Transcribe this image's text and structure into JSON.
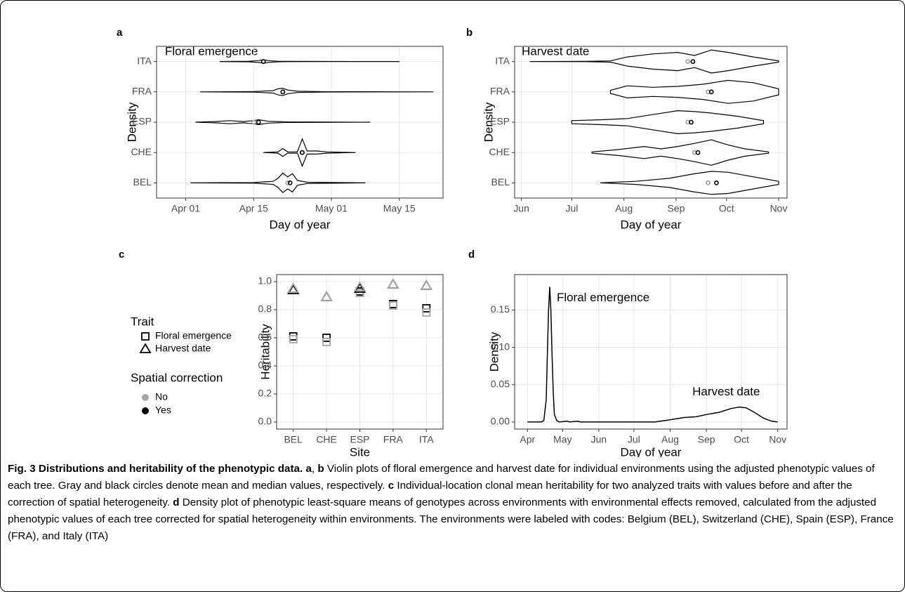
{
  "chart_data": [
    {
      "type": "violin",
      "label": "a",
      "title": "Floral emergence",
      "xlabel": "Day of year",
      "ylabel": "Density",
      "categories": [
        "BEL",
        "CHE",
        "ESP",
        "FRA",
        "ITA"
      ],
      "xlim": [
        85,
        144
      ],
      "xticks": [
        {
          "value": 91,
          "label": "Apr 01"
        },
        {
          "value": 105,
          "label": "Apr 15"
        },
        {
          "value": 121,
          "label": "May 01"
        },
        {
          "value": 135,
          "label": "May 15"
        }
      ],
      "grid": true,
      "mean_color": "#9e9e9e",
      "median_color": "#000000",
      "violins": [
        {
          "mean": 112,
          "median": 112.5,
          "density_x": [
            92,
            105,
            109,
            110,
            111,
            112,
            113,
            114,
            116,
            128
          ],
          "density_w": [
            0,
            0.01,
            0.05,
            0.15,
            0.32,
            0.2,
            0.3,
            0.08,
            0.02,
            0
          ]
        },
        {
          "mean": 115,
          "median": 115,
          "density_x": [
            107,
            110,
            111,
            112,
            114,
            115,
            116,
            118,
            120,
            126
          ],
          "density_w": [
            0,
            0.02,
            0.13,
            0.02,
            0.02,
            0.45,
            0.05,
            0.05,
            0.02,
            0
          ]
        },
        {
          "mean": 105,
          "median": 106,
          "density_x": [
            93,
            97,
            100,
            103,
            104,
            105,
            106,
            108,
            112,
            129
          ],
          "density_w": [
            0,
            0.02,
            0.05,
            0.02,
            0.04,
            0.05,
            0.08,
            0.03,
            0.01,
            0
          ]
        },
        {
          "mean": 111,
          "median": 111,
          "density_x": [
            94,
            105,
            109,
            110,
            111,
            112,
            114,
            120,
            142
          ],
          "density_w": [
            0,
            0.01,
            0.04,
            0.1,
            0.12,
            0.06,
            0.02,
            0.005,
            0
          ]
        },
        {
          "mean": 107,
          "median": 107,
          "density_x": [
            98,
            104,
            106,
            107,
            108,
            110,
            112,
            120,
            135
          ],
          "density_w": [
            0,
            0.01,
            0.03,
            0.06,
            0.03,
            0.01,
            0.005,
            0.003,
            0
          ]
        }
      ]
    },
    {
      "type": "violin",
      "label": "b",
      "title": "Harvest date",
      "xlabel": "Day of year",
      "ylabel": "Density",
      "categories": [
        "BEL",
        "CHE",
        "ESP",
        "FRA",
        "ITA"
      ],
      "xlim": [
        148,
        310
      ],
      "xticks": [
        {
          "value": 152,
          "label": "Jun"
        },
        {
          "value": 182,
          "label": "Jul"
        },
        {
          "value": 213,
          "label": "Aug"
        },
        {
          "value": 244,
          "label": "Sep"
        },
        {
          "value": 274,
          "label": "Oct"
        },
        {
          "value": 305,
          "label": "Nov"
        }
      ],
      "grid": true,
      "mean_color": "#9e9e9e",
      "median_color": "#000000",
      "violins": [
        {
          "mean": 263,
          "median": 268,
          "density_x": [
            199,
            220,
            240,
            255,
            265,
            275,
            290,
            305
          ],
          "density_w": [
            0,
            0.05,
            0.15,
            0.3,
            0.38,
            0.35,
            0.2,
            0.05
          ]
        },
        {
          "mean": 255,
          "median": 257,
          "density_x": [
            194,
            210,
            225,
            235,
            245,
            255,
            265,
            275,
            285,
            299
          ],
          "density_w": [
            0.02,
            0.1,
            0.2,
            0.12,
            0.2,
            0.3,
            0.42,
            0.25,
            0.12,
            0.02
          ]
        },
        {
          "mean": 251,
          "median": 253,
          "density_x": [
            182,
            200,
            215,
            230,
            245,
            255,
            265,
            280,
            296
          ],
          "density_w": [
            0.05,
            0.08,
            0.12,
            0.25,
            0.38,
            0.35,
            0.3,
            0.2,
            0.05
          ]
        },
        {
          "mean": 263,
          "median": 265,
          "density_x": [
            205,
            215,
            230,
            245,
            260,
            275,
            290,
            305
          ],
          "density_w": [
            0.05,
            0.2,
            0.15,
            0.18,
            0.25,
            0.38,
            0.3,
            0.1
          ]
        },
        {
          "mean": 251,
          "median": 254,
          "density_x": [
            157,
            190,
            205,
            215,
            230,
            245,
            255,
            265,
            275,
            290,
            305
          ],
          "density_w": [
            0,
            0.005,
            0.02,
            0.15,
            0.25,
            0.3,
            0.2,
            0.38,
            0.3,
            0.15,
            0.02
          ]
        }
      ]
    },
    {
      "type": "scatter",
      "label": "c",
      "xlabel": "Site",
      "ylabel": "Heritability",
      "categories": [
        "BEL",
        "CHE",
        "ESP",
        "FRA",
        "ITA"
      ],
      "ylim": [
        -0.05,
        1.05
      ],
      "yticks": [
        {
          "value": 0,
          "label": "0.0"
        },
        {
          "value": 0.2,
          "label": "0.2"
        },
        {
          "value": 0.4,
          "label": "0.4"
        },
        {
          "value": 0.6,
          "label": "0.6"
        },
        {
          "value": 0.8,
          "label": "0.8"
        },
        {
          "value": 1,
          "label": "1.0"
        }
      ],
      "grid": true,
      "legend": {
        "position": "left",
        "shape_title": "Trait",
        "shape_names": [
          "Floral emergence",
          "Harvest date"
        ],
        "shapes": [
          "square",
          "triangle"
        ],
        "color_title": "Spatial correction",
        "color_names": [
          "No",
          "Yes"
        ],
        "colors": [
          "#a6a6a6",
          "#000000"
        ]
      },
      "series": [
        {
          "shape": "square",
          "color": "#000000",
          "values": [
            0.61,
            0.6,
            0.93,
            0.84,
            0.81
          ]
        },
        {
          "shape": "square",
          "color": "#a6a6a6",
          "values": [
            0.59,
            0.57,
            0.92,
            0.83,
            0.78
          ]
        },
        {
          "shape": "triangle",
          "color": "#000000",
          "values": [
            0.94,
            0.89,
            0.95,
            0.98,
            0.97
          ]
        },
        {
          "shape": "triangle",
          "color": "#a6a6a6",
          "values": [
            0.95,
            0.89,
            0.96,
            0.98,
            0.97
          ]
        }
      ]
    },
    {
      "type": "line",
      "label": "d",
      "xlabel": "Day of year",
      "ylabel": "Density",
      "xlim": [
        80,
        313
      ],
      "xticks": [
        {
          "value": 91,
          "label": "Apr"
        },
        {
          "value": 121,
          "label": "May"
        },
        {
          "value": 152,
          "label": "Jun"
        },
        {
          "value": 182,
          "label": "Jul"
        },
        {
          "value": 213,
          "label": "Aug"
        },
        {
          "value": 244,
          "label": "Sep"
        },
        {
          "value": 274,
          "label": "Oct"
        },
        {
          "value": 305,
          "label": "Nov"
        }
      ],
      "ylim": [
        -0.0095,
        0.1975
      ],
      "yticks": [
        {
          "value": 0,
          "label": "0.00"
        },
        {
          "value": 0.05,
          "label": "0.05"
        },
        {
          "value": 0.1,
          "label": "0.10"
        },
        {
          "value": 0.15,
          "label": "0.15"
        }
      ],
      "grid": true,
      "color": "#000000",
      "x": [
        91,
        103,
        105,
        107,
        108,
        109,
        110,
        111,
        112,
        113,
        114,
        116,
        118,
        125,
        127,
        134,
        136,
        200,
        213,
        225,
        235,
        244,
        255,
        265,
        272,
        278,
        285,
        293,
        300,
        305
      ],
      "values": [
        0,
        0,
        0.002,
        0.03,
        0.09,
        0.15,
        0.181,
        0.15,
        0.09,
        0.04,
        0.01,
        0.002,
        0,
        0.001,
        0,
        0.001,
        0,
        0,
        0.003,
        0.006,
        0.007,
        0.01,
        0.013,
        0.018,
        0.02,
        0.019,
        0.013,
        0.005,
        0.001,
        0
      ],
      "annotations": [
        "Floral emergence",
        "Harvest date"
      ]
    }
  ],
  "caption": [
    {
      "text": "Fig. 3 Distributions and heritability of the phenotypic data.",
      "bold": true
    },
    {
      "text": " ",
      "bold": false
    },
    {
      "text": "a",
      "bold": true
    },
    {
      "text": ", ",
      "bold": false
    },
    {
      "text": "b",
      "bold": true
    },
    {
      "text": " Violin plots of floral emergence and harvest date for individual environments using the adjusted phenotypic values of each tree. Gray and black circles denote mean and median values, respectively. ",
      "bold": false
    },
    {
      "text": "c",
      "bold": true
    },
    {
      "text": " Individual-location clonal mean heritability for two analyzed traits with values before and after the correction of spatial heterogeneity. ",
      "bold": false
    },
    {
      "text": "d",
      "bold": true
    },
    {
      "text": " Density plot of phenotypic least-square means of genotypes across environments with environmental effects removed, calculated from the adjusted phenotypic values of each tree corrected for spatial heterogeneity within environments. The environments were labeled with codes: Belgium (BEL), Switzerland (CHE), Spain (ESP), France (FRA), and Italy (ITA)",
      "bold": false
    }
  ]
}
